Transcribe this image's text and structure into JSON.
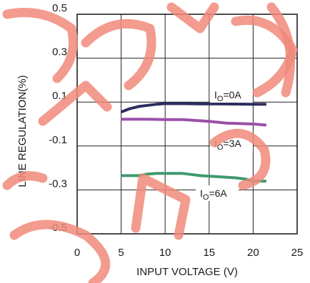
{
  "chart_data": {
    "type": "line",
    "title": "",
    "xlabel": "INPUT VOLTAGE (V)",
    "ylabel": "LINE REGULATION(%)",
    "xlim": [
      0,
      25
    ],
    "ylim": [
      -0.5,
      0.5
    ],
    "x_ticks": [
      "0",
      "5",
      "10",
      "15",
      "20",
      "25"
    ],
    "y_ticks": [
      "0.5",
      "0.3",
      "0.1",
      "-0.1",
      "-0.3",
      "-0.5"
    ],
    "grid": true,
    "series": [
      {
        "name_main": "I",
        "name_sub": "O",
        "name_rest": "=0A",
        "color": "#2b2d5e",
        "x": [
          5,
          6,
          7,
          8,
          9,
          10,
          12,
          14,
          16,
          18,
          20,
          21.5
        ],
        "y": [
          0.055,
          0.07,
          0.08,
          0.085,
          0.09,
          0.093,
          0.093,
          0.092,
          0.092,
          0.091,
          0.09,
          0.09
        ]
      },
      {
        "name_main": "I",
        "name_sub": "O",
        "name_rest": "=3A",
        "color": "#9b4fa8",
        "x": [
          5,
          8,
          10,
          12,
          14,
          15,
          16,
          17,
          18,
          20,
          21.5
        ],
        "y": [
          0.022,
          0.022,
          0.02,
          0.02,
          0.015,
          0.012,
          0.008,
          0.004,
          0.003,
          0.0,
          -0.005
        ]
      },
      {
        "name_main": "I",
        "name_sub": "O",
        "name_rest": "=6A",
        "color": "#3f9a6e",
        "x": [
          5,
          7,
          8,
          9,
          12,
          13,
          14,
          16,
          18,
          19,
          20,
          21.5
        ],
        "y": [
          -0.235,
          -0.235,
          -0.228,
          -0.225,
          -0.225,
          -0.23,
          -0.235,
          -0.24,
          -0.245,
          -0.25,
          -0.26,
          -0.26
        ]
      }
    ]
  }
}
